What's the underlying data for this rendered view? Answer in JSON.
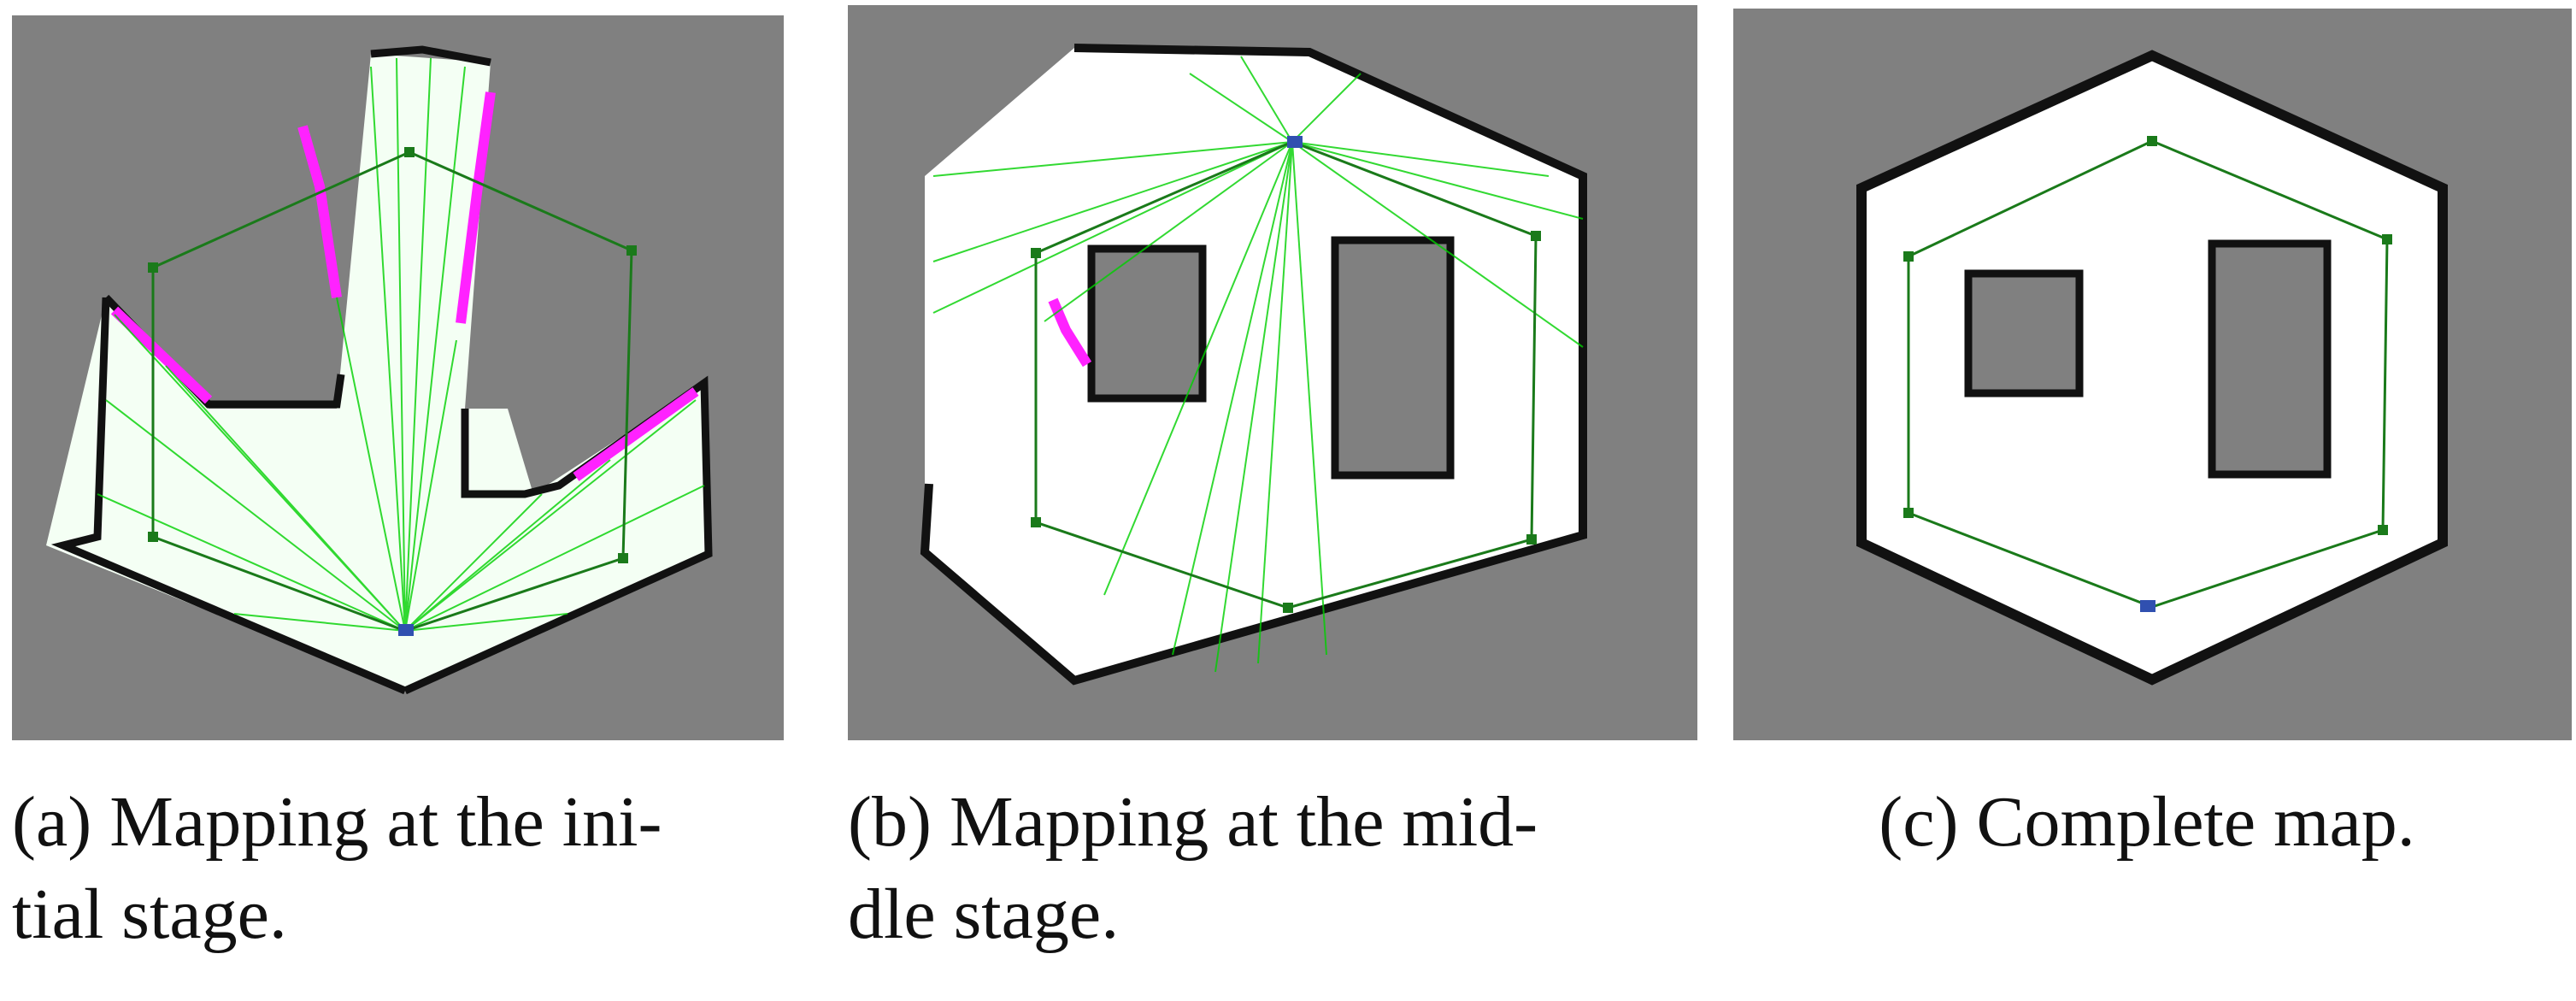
{
  "figure": {
    "panels": [
      {
        "caption_lines": [
          "(a) Mapping at the ini-",
          "tial stage."
        ],
        "stage": "initial"
      },
      {
        "caption_lines": [
          "(b) Mapping at the mid-",
          "dle stage."
        ],
        "stage": "middle"
      },
      {
        "caption_lines": [
          "(c) Complete map."
        ],
        "stage": "complete"
      }
    ],
    "colors": {
      "background": "#808080",
      "free_space": "#ffffff",
      "walls": "#111111",
      "laser_rays": "#00e000",
      "path": "#1a7a1a",
      "frontier": "#ff22ff",
      "robot": "#3050b0"
    }
  }
}
